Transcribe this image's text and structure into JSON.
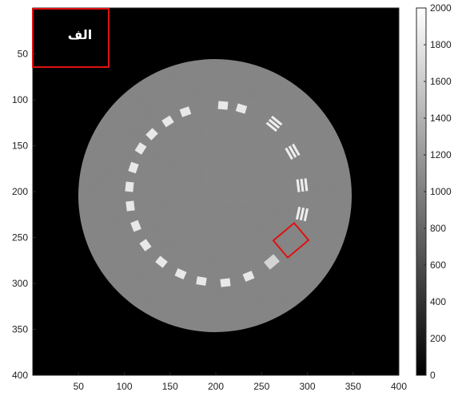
{
  "figure": {
    "image": {
      "x_range": [
        0,
        400
      ],
      "y_range": [
        0,
        400
      ],
      "x_ticks": [
        "50",
        "100",
        "150",
        "200",
        "250",
        "300",
        "350",
        "400"
      ],
      "y_ticks": [
        "50",
        "100",
        "150",
        "200",
        "250",
        "300",
        "350",
        "400"
      ],
      "phantom_intensity": 1000,
      "insert_intensity": 2000
    },
    "colorbar": {
      "range": [
        0,
        2000
      ],
      "ticks": [
        "0",
        "200",
        "400",
        "600",
        "800",
        "1000",
        "1200",
        "1400",
        "1600",
        "1800",
        "2000"
      ],
      "colormap": "gray"
    },
    "annotation": {
      "label": "الف",
      "box_color": "#e01010"
    }
  }
}
